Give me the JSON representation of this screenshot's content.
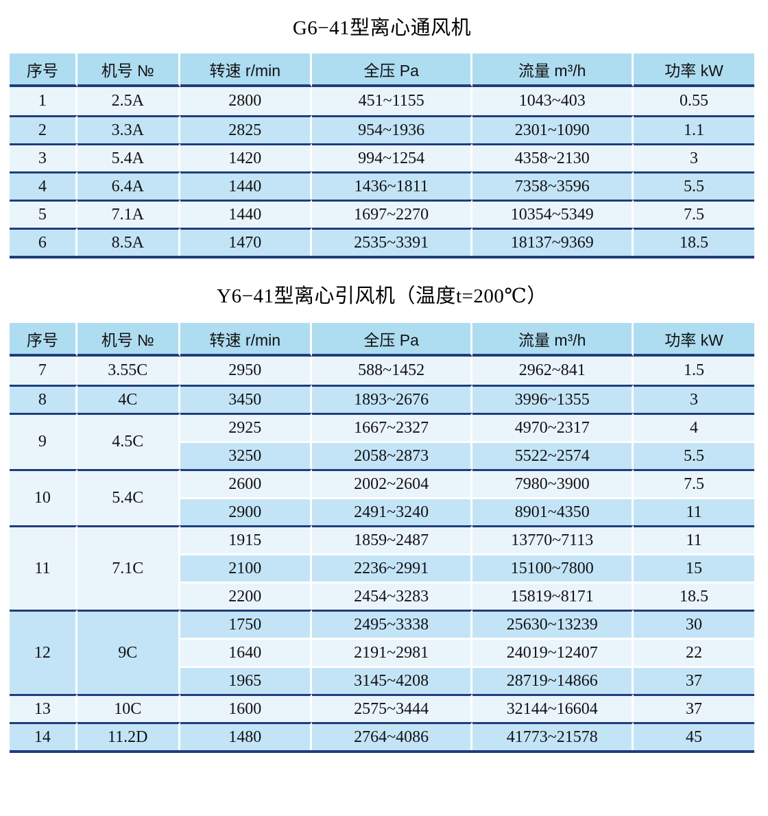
{
  "colors": {
    "header_bg": "#aedcf1",
    "row_light": "#eaf4fb",
    "row_dark": "#c3e4f6",
    "divider_navy": "#1f3d7c",
    "column_gap_white": "#ffffff",
    "text": "#111111"
  },
  "tables": [
    {
      "title": "G6−41型离心通风机",
      "columns": [
        "序号",
        "机号 №",
        "转速 r/min",
        "全压 Pa",
        "流量 m³/h",
        "功率 kW"
      ],
      "rows": [
        {
          "seq": "1",
          "model": "2.5A",
          "specs": [
            [
              "2800",
              "451~1155",
              "1043~403",
              "0.55"
            ]
          ]
        },
        {
          "seq": "2",
          "model": "3.3A",
          "specs": [
            [
              "2825",
              "954~1936",
              "2301~1090",
              "1.1"
            ]
          ]
        },
        {
          "seq": "3",
          "model": "5.4A",
          "specs": [
            [
              "1420",
              "994~1254",
              "4358~2130",
              "3"
            ]
          ]
        },
        {
          "seq": "4",
          "model": "6.4A",
          "specs": [
            [
              "1440",
              "1436~1811",
              "7358~3596",
              "5.5"
            ]
          ]
        },
        {
          "seq": "5",
          "model": "7.1A",
          "specs": [
            [
              "1440",
              "1697~2270",
              "10354~5349",
              "7.5"
            ]
          ]
        },
        {
          "seq": "6",
          "model": "8.5A",
          "specs": [
            [
              "1470",
              "2535~3391",
              "18137~9369",
              "18.5"
            ]
          ]
        }
      ]
    },
    {
      "title": "Y6−41型离心引风机（温度t=200℃）",
      "columns": [
        "序号",
        "机号 №",
        "转速 r/min",
        "全压 Pa",
        "流量 m³/h",
        "功率 kW"
      ],
      "rows": [
        {
          "seq": "7",
          "model": "3.55C",
          "specs": [
            [
              "2950",
              "588~1452",
              "2962~841",
              "1.5"
            ]
          ]
        },
        {
          "seq": "8",
          "model": "4C",
          "specs": [
            [
              "3450",
              "1893~2676",
              "3996~1355",
              "3"
            ]
          ]
        },
        {
          "seq": "9",
          "model": "4.5C",
          "specs": [
            [
              "2925",
              "1667~2327",
              "4970~2317",
              "4"
            ],
            [
              "3250",
              "2058~2873",
              "5522~2574",
              "5.5"
            ]
          ]
        },
        {
          "seq": "10",
          "model": "5.4C",
          "specs": [
            [
              "2600",
              "2002~2604",
              "7980~3900",
              "7.5"
            ],
            [
              "2900",
              "2491~3240",
              "8901~4350",
              "11"
            ]
          ]
        },
        {
          "seq": "11",
          "model": "7.1C",
          "specs": [
            [
              "1915",
              "1859~2487",
              "13770~7113",
              "11"
            ],
            [
              "2100",
              "2236~2991",
              "15100~7800",
              "15"
            ],
            [
              "2200",
              "2454~3283",
              "15819~8171",
              "18.5"
            ]
          ]
        },
        {
          "seq": "12",
          "model": "9C",
          "specs": [
            [
              "1750",
              "2495~3338",
              "25630~13239",
              "30"
            ],
            [
              "1640",
              "2191~2981",
              "24019~12407",
              "22"
            ],
            [
              "1965",
              "3145~4208",
              "28719~14866",
              "37"
            ]
          ]
        },
        {
          "seq": "13",
          "model": "10C",
          "specs": [
            [
              "1600",
              "2575~3444",
              "32144~16604",
              "37"
            ]
          ]
        },
        {
          "seq": "14",
          "model": "11.2D",
          "specs": [
            [
              "1480",
              "2764~4086",
              "41773~21578",
              "45"
            ]
          ]
        }
      ]
    }
  ]
}
